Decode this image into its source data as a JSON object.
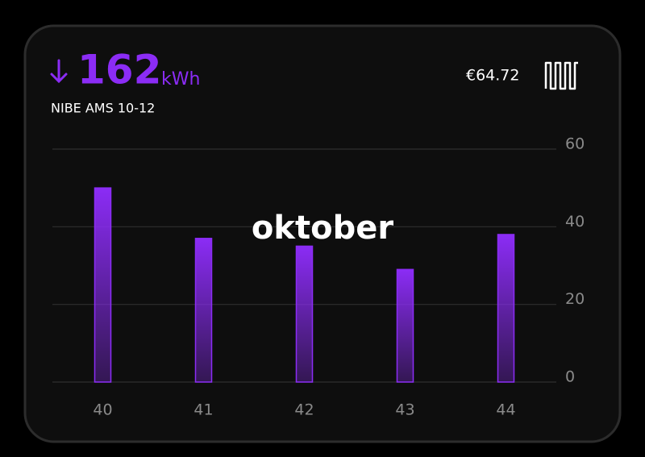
{
  "header": {
    "value": 162,
    "unit": "kWh",
    "device": "NIBE AMS 10-12",
    "price": "€64.72"
  },
  "chart_data": {
    "type": "bar",
    "title": "oktober",
    "categories": [
      "40",
      "41",
      "42",
      "43",
      "44"
    ],
    "values": [
      50,
      37,
      35,
      29,
      38
    ],
    "color": "#8b2cf5",
    "ylim": [
      0,
      60
    ],
    "yticks": [
      0,
      20,
      40,
      60
    ],
    "grid": true
  }
}
